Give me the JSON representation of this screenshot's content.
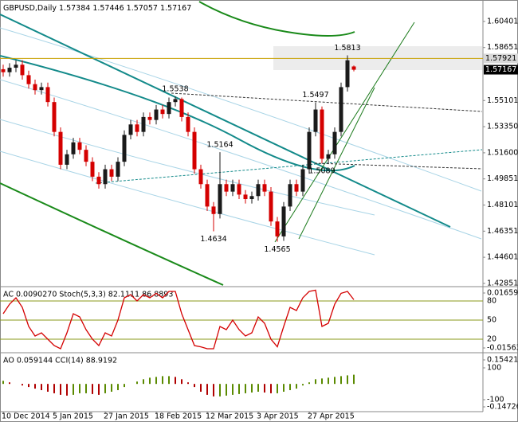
{
  "chart_data": [
    {
      "type": "candlestick",
      "title": "GBPUSD,Daily",
      "categories": [
        "10 Dec 2014",
        null,
        null,
        null,
        null,
        null,
        null,
        null,
        "5 Jan 2015",
        null,
        null,
        null,
        null,
        null,
        null,
        null,
        "27 Jan 2015",
        null,
        null,
        null,
        null,
        null,
        null,
        null,
        "18 Feb 2015",
        null,
        null,
        null,
        null,
        null,
        null,
        null,
        "12 Mar 2015",
        null,
        null,
        null,
        null,
        null,
        null,
        null,
        "3 Apr 2015",
        null,
        null,
        null,
        null,
        null,
        null,
        null,
        "27 Apr 2015",
        null,
        null,
        null,
        null,
        null,
        null,
        null
      ],
      "open": [
        1.572,
        1.57,
        1.573,
        1.575,
        1.568,
        1.562,
        1.558,
        1.56,
        1.55,
        1.53,
        1.508,
        1.515,
        1.523,
        1.518,
        1.51,
        1.5,
        1.495,
        1.505,
        1.5,
        1.51,
        1.528,
        1.535,
        1.53,
        1.54,
        1.538,
        1.545,
        1.542,
        1.55,
        1.552,
        1.54,
        1.53,
        1.505,
        1.495,
        1.48,
        1.475,
        1.495,
        1.49,
        1.495,
        1.488,
        1.485,
        1.487,
        1.495,
        1.49,
        1.47,
        1.46,
        1.48,
        1.495,
        1.49,
        1.505,
        1.53,
        1.545,
        1.512,
        1.515,
        1.53,
        1.56,
        1.57384
      ],
      "high": [
        1.575,
        1.576,
        1.578,
        1.578,
        1.571,
        1.565,
        1.563,
        1.563,
        1.553,
        1.533,
        1.518,
        1.526,
        1.526,
        1.521,
        1.513,
        1.503,
        1.508,
        1.508,
        1.513,
        1.531,
        1.538,
        1.538,
        1.543,
        1.543,
        1.548,
        1.548,
        1.553,
        1.5538,
        1.553,
        1.543,
        1.533,
        1.508,
        1.498,
        1.483,
        1.5164,
        1.498,
        1.498,
        1.498,
        1.491,
        1.49,
        1.498,
        1.498,
        1.493,
        1.473,
        1.483,
        1.498,
        1.498,
        1.508,
        1.533,
        1.5497,
        1.547,
        1.518,
        1.533,
        1.563,
        1.5813,
        1.57446
      ],
      "low": [
        1.567,
        1.567,
        1.57,
        1.565,
        1.559,
        1.555,
        1.555,
        1.547,
        1.527,
        1.505,
        1.505,
        1.512,
        1.515,
        1.507,
        1.497,
        1.492,
        1.492,
        1.497,
        1.497,
        1.507,
        1.525,
        1.527,
        1.527,
        1.535,
        1.535,
        1.539,
        1.539,
        1.547,
        1.537,
        1.527,
        1.502,
        1.492,
        1.477,
        1.4634,
        1.472,
        1.487,
        1.487,
        1.485,
        1.482,
        1.482,
        1.484,
        1.487,
        1.467,
        1.4565,
        1.457,
        1.477,
        1.487,
        1.487,
        1.502,
        1.527,
        1.5089,
        1.509,
        1.512,
        1.527,
        1.557,
        1.57057
      ],
      "close": [
        1.57,
        1.573,
        1.575,
        1.568,
        1.562,
        1.558,
        1.56,
        1.55,
        1.53,
        1.508,
        1.515,
        1.523,
        1.518,
        1.51,
        1.5,
        1.495,
        1.505,
        1.5,
        1.51,
        1.528,
        1.535,
        1.53,
        1.54,
        1.538,
        1.545,
        1.542,
        1.55,
        1.552,
        1.54,
        1.53,
        1.505,
        1.495,
        1.48,
        1.475,
        1.495,
        1.49,
        1.495,
        1.488,
        1.485,
        1.487,
        1.495,
        1.49,
        1.47,
        1.46,
        1.48,
        1.495,
        1.49,
        1.505,
        1.53,
        1.545,
        1.512,
        1.515,
        1.53,
        1.56,
        1.578,
        1.57167
      ],
      "up_color": "#1a1a1a",
      "down_color": "#d40000",
      "ylim": [
        1.4274,
        1.6173
      ],
      "yticks": [
        1.60401,
        1.58651,
        1.55101,
        {
          "value": 1.5335,
          "label": "1.53350"
        },
        {
          "value": 1.516,
          "label": "1.51600"
        },
        1.49851,
        1.48101,
        1.46351,
        1.44601,
        1.42851
      ],
      "hline": {
        "value": 1.57921,
        "color": "#c8a000"
      }
    },
    {
      "type": "line",
      "title": "AC 0.0090270  Stoch(5,3,3) 82.1111 86.8893",
      "values": [
        60,
        75,
        85,
        70,
        40,
        25,
        30,
        20,
        10,
        5,
        30,
        60,
        55,
        35,
        20,
        10,
        30,
        25,
        50,
        85,
        90,
        80,
        90,
        85,
        92,
        85,
        95,
        95,
        60,
        35,
        10,
        8,
        5,
        5,
        40,
        35,
        50,
        35,
        25,
        30,
        55,
        45,
        20,
        8,
        40,
        70,
        65,
        85,
        95,
        97,
        40,
        45,
        75,
        92,
        95,
        82
      ],
      "color": "#d40000",
      "level_color": "#8a9a1a",
      "ylim": [
        0,
        100
      ],
      "yticks": [
        80,
        50,
        20
      ],
      "y2lim": [
        -0.015637,
        0.016594
      ],
      "y2ticks": [
        0.016594,
        -0.015637
      ]
    },
    {
      "type": "bar",
      "title": "AO 0.059144  CCI(14) 88.9192",
      "values": [
        0.02,
        0.01,
        0,
        -0.01,
        -0.02,
        -0.03,
        -0.04,
        -0.05,
        -0.06,
        -0.07,
        -0.075,
        -0.07,
        -0.06,
        -0.06,
        -0.065,
        -0.07,
        -0.06,
        -0.05,
        -0.04,
        -0.02,
        0,
        0.015,
        0.03,
        0.04,
        0.045,
        0.05,
        0.05,
        0.045,
        0.03,
        0.01,
        -0.02,
        -0.05,
        -0.07,
        -0.08,
        -0.08,
        -0.075,
        -0.07,
        -0.065,
        -0.06,
        -0.055,
        -0.05,
        -0.055,
        -0.06,
        -0.06,
        -0.05,
        -0.04,
        -0.03,
        -0.01,
        0.01,
        0.03,
        0.035,
        0.04,
        0.045,
        0.05,
        0.055,
        0.059144
      ],
      "up_color": "#5a8a00",
      "down_color": "#b00000",
      "ylim": [
        -0.147267,
        0.154215
      ],
      "yticks": [
        0.154215,
        -0.147267
      ],
      "y2lim": [
        -175,
        175
      ],
      "y2ticks": [
        100,
        -100
      ]
    }
  ]
}
